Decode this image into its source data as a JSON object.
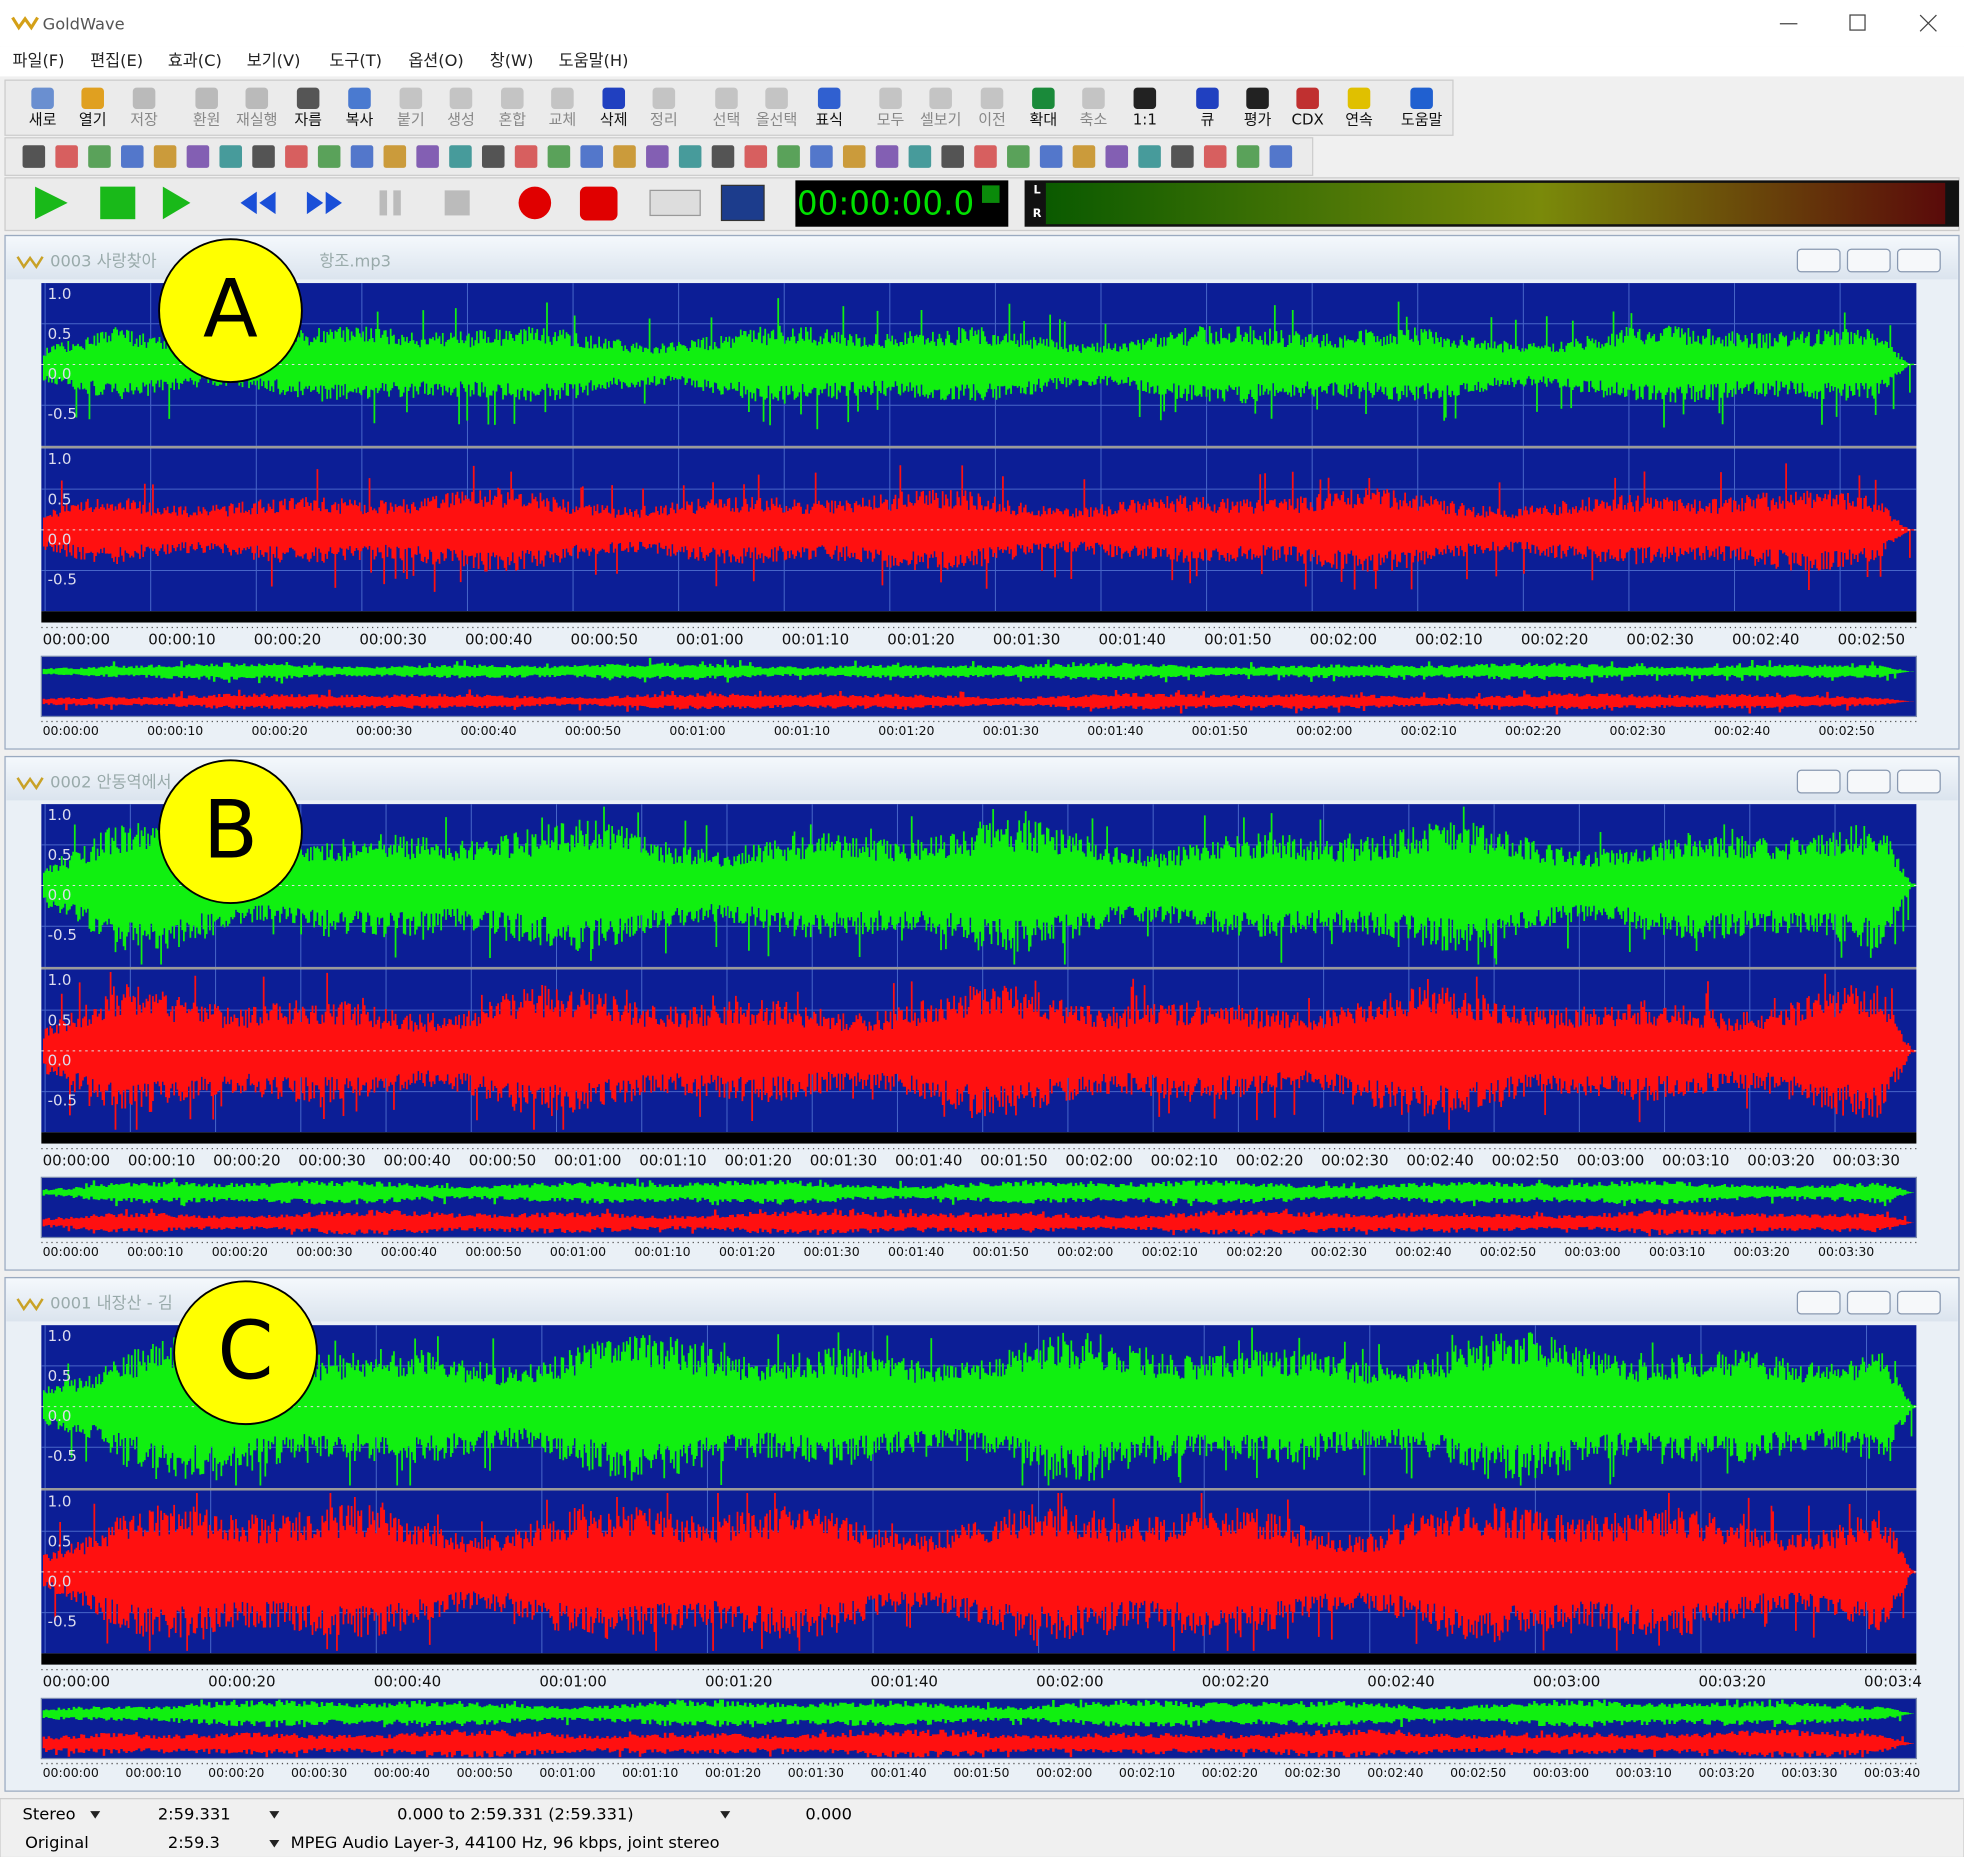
{
  "app": {
    "title": "GoldWave",
    "menu": [
      "파일(F)",
      "편집(E)",
      "효과(C)",
      "보기(V)",
      "도구(T)",
      "옵션(O)",
      "창(W)",
      "도움말(H)"
    ],
    "toolbar": [
      "새로",
      "열기",
      "저장",
      "환원",
      "재실행",
      "자름",
      "복사",
      "붙기",
      "생성",
      "혼합",
      "교체",
      "삭제",
      "정리",
      "선택",
      "올선택",
      "표식",
      "모두",
      "셀보기",
      "이전",
      "확대",
      "축소",
      "1:1",
      "큐",
      "평가",
      "CDX",
      "연속",
      "도움말"
    ],
    "time_display": "00:00:00.0",
    "meter_left": "L",
    "meter_right": "R",
    "amplitude_labels": [
      "1.0",
      "0.5",
      "0.0",
      "-0.5"
    ],
    "windows": [
      {
        "title": "0003 사랑찾아",
        "title_end": "항조.mp3",
        "callout": "A",
        "ruler": [
          "00:00:00",
          "00:00:10",
          "00:00:20",
          "00:00:30",
          "00:00:40",
          "00:00:50",
          "00:01:00",
          "00:01:10",
          "00:01:20",
          "00:01:30",
          "00:01:40",
          "00:01:50",
          "00:02:00",
          "00:02:10",
          "00:02:20",
          "00:02:30",
          "00:02:40",
          "00:02:50"
        ],
        "overview_ruler": [
          "00:00:00",
          "00:00:10",
          "00:00:20",
          "00:00:30",
          "00:00:40",
          "00:00:50",
          "00:01:00",
          "00:01:10",
          "00:01:20",
          "00:01:30",
          "00:01:40",
          "00:01:50",
          "00:02:00",
          "00:02:10",
          "00:02:20",
          "00:02:30",
          "00:02:40",
          "00:02:50"
        ]
      },
      {
        "title": "0002 안동역에서",
        "title_end": "",
        "callout": "B",
        "ruler": [
          "00:00:00",
          "00:00:10",
          "00:00:20",
          "00:00:30",
          "00:00:40",
          "00:00:50",
          "00:01:00",
          "00:01:10",
          "00:01:20",
          "00:01:30",
          "00:01:40",
          "00:01:50",
          "00:02:00",
          "00:02:10",
          "00:02:20",
          "00:02:30",
          "00:02:40",
          "00:02:50",
          "00:03:00",
          "00:03:10",
          "00:03:20",
          "00:03:30"
        ],
        "overview_ruler": [
          "00:00:00",
          "00:00:10",
          "00:00:20",
          "00:00:30",
          "00:00:40",
          "00:00:50",
          "00:01:00",
          "00:01:10",
          "00:01:20",
          "00:01:30",
          "00:01:40",
          "00:01:50",
          "00:02:00",
          "00:02:10",
          "00:02:20",
          "00:02:30",
          "00:02:40",
          "00:02:50",
          "00:03:00",
          "00:03:10",
          "00:03:20",
          "00:03:30"
        ]
      },
      {
        "title": "0001 내장산 - 김",
        "title_end": "",
        "callout": "C",
        "ruler": [
          "00:00:00",
          "00:00:20",
          "00:00:40",
          "00:01:00",
          "00:01:20",
          "00:01:40",
          "00:02:00",
          "00:02:20",
          "00:02:40",
          "00:03:00",
          "00:03:20",
          "00:03:4"
        ],
        "overview_ruler": [
          "00:00:00",
          "00:00:10",
          "00:00:20",
          "00:00:30",
          "00:00:40",
          "00:00:50",
          "00:01:00",
          "00:01:10",
          "00:01:20",
          "00:01:30",
          "00:01:40",
          "00:01:50",
          "00:02:00",
          "00:02:10",
          "00:02:20",
          "00:02:30",
          "00:02:40",
          "00:02:50",
          "00:03:00",
          "00:03:10",
          "00:03:20",
          "00:03:30",
          "00:03:40"
        ]
      }
    ],
    "status": {
      "channels": "Stereo",
      "length": "2:59.331",
      "selection": "0.000 to 2:59.331 (2:59.331)",
      "position": "0.000",
      "quality": "Original",
      "original_length": "2:59.3",
      "format": "MPEG Audio Layer-3, 44100 Hz, 96 kbps, joint stereo"
    }
  }
}
